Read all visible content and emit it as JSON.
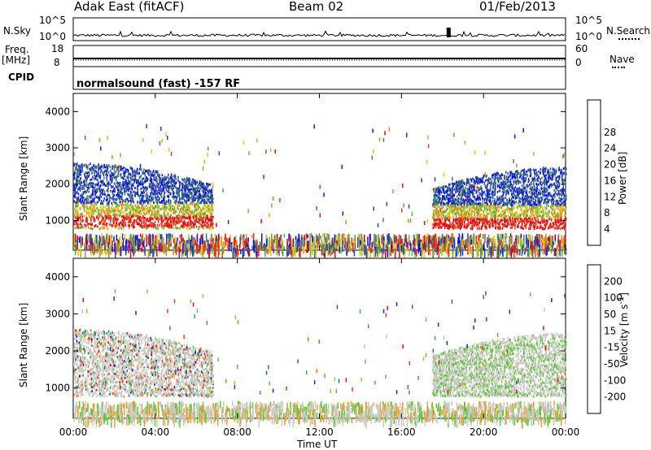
{
  "header": {
    "left": "Adak East (fitACF)",
    "center": "Beam 02",
    "right": "01/Feb/2013"
  },
  "strips": {
    "nsky_label": "N.Sky",
    "nsearch_label": "N.Search",
    "nsky_ticks": [
      "10^5",
      "10^0"
    ],
    "nsearch_ticks": [
      "10^5",
      "10^0"
    ],
    "freq_label": "Freq.",
    "freq_unit": "[MHz]",
    "freq_ticks": [
      "18",
      "8"
    ],
    "nave_label": "Nave",
    "nave_ticks": [
      "60",
      "0"
    ],
    "cpid_label": "CPID",
    "cpid_text": "normalsound (fast) -157 RF"
  },
  "chart_data": [
    {
      "type": "heatmap",
      "name": "power",
      "ylabel": "Slant Range [km]",
      "xlabel": "Time UT",
      "yticks": [
        "1000",
        "2000",
        "3000",
        "4000"
      ],
      "xticks": [
        "00:00",
        "04:00",
        "08:00",
        "12:00",
        "16:00",
        "20:00",
        "00:00"
      ],
      "ylim": [
        180,
        4500
      ],
      "xlim_hours": [
        0,
        24
      ],
      "colorbar": {
        "label": "Power [dB]",
        "ticks": [
          "4",
          "8",
          "12",
          "16",
          "20",
          "24",
          "28"
        ],
        "colors": [
          "#1010ee",
          "#2840a8",
          "#3a7f6a",
          "#5aaa3a",
          "#9ccc28",
          "#f0c010",
          "#f08020",
          "#e83818",
          "#e80010"
        ]
      },
      "features": [
        {
          "desc_hours": [
            0,
            7
          ],
          "range_km": [
            700,
            2700
          ],
          "level": "high"
        },
        {
          "desc_hours": [
            17.5,
            24
          ],
          "range_km": [
            700,
            2500
          ],
          "level": "high"
        },
        {
          "desc_hours": [
            0,
            24
          ],
          "range_km": [
            200,
            600
          ],
          "level": "ground scatter"
        }
      ]
    },
    {
      "type": "heatmap",
      "name": "velocity",
      "ylabel": "Slant Range [km]",
      "xlabel": "Time UT",
      "yticks": [
        "1000",
        "2000",
        "3000",
        "4000"
      ],
      "xticks": [
        "00:00",
        "04:00",
        "08:00",
        "12:00",
        "16:00",
        "20:00",
        "00:00"
      ],
      "ylim": [
        180,
        4500
      ],
      "xlim_hours": [
        0,
        24
      ],
      "colorbar": {
        "label": "Velocity [m s^-1]",
        "ticks": [
          "200",
          "100",
          "50",
          "15",
          "-15",
          "-50",
          "-100",
          "-200"
        ],
        "colors": [
          "#1a2ea8",
          "#2a6e86",
          "#3ea05c",
          "#62c43e",
          "#c8c8c0",
          "#e8a030",
          "#f07020",
          "#e83818",
          "#e80010"
        ]
      }
    }
  ]
}
